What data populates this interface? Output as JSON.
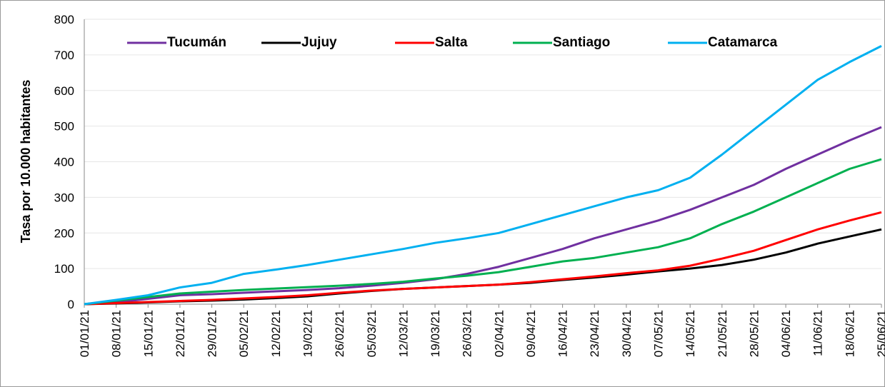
{
  "chart_data": {
    "type": "line",
    "y_label": "Tasa por 10.000 habitantes",
    "categories": [
      "01/01/21",
      "08/01/21",
      "15/01/21",
      "22/01/21",
      "29/01/21",
      "05/02/21",
      "12/02/21",
      "19/02/21",
      "26/02/21",
      "05/03/21",
      "12/03/21",
      "19/03/21",
      "26/03/21",
      "02/04/21",
      "09/04/21",
      "16/04/21",
      "23/04/21",
      "30/04/21",
      "07/05/21",
      "14/05/21",
      "21/05/21",
      "28/05/21",
      "04/06/21",
      "11/06/21",
      "18/06/21",
      "25/06/21"
    ],
    "series": [
      {
        "name": "Tucumán",
        "color": "#7030a0",
        "values": [
          0,
          5,
          15,
          25,
          28,
          32,
          36,
          40,
          45,
          52,
          60,
          70,
          85,
          105,
          130,
          155,
          185,
          210,
          235,
          265,
          300,
          335,
          380,
          420,
          460,
          497
        ]
      },
      {
        "name": "Jujuy",
        "color": "#000000",
        "values": [
          0,
          2,
          5,
          8,
          10,
          13,
          17,
          22,
          30,
          37,
          43,
          47,
          51,
          55,
          60,
          68,
          75,
          83,
          92,
          100,
          110,
          125,
          145,
          170,
          190,
          210
        ]
      },
      {
        "name": "Salta",
        "color": "#ff0000",
        "values": [
          0,
          3,
          6,
          9,
          12,
          16,
          20,
          25,
          32,
          38,
          43,
          47,
          51,
          55,
          62,
          70,
          78,
          87,
          95,
          108,
          128,
          150,
          180,
          210,
          235,
          258
        ]
      },
      {
        "name": "Santiago",
        "color": "#00b050",
        "values": [
          0,
          10,
          20,
          30,
          35,
          40,
          44,
          48,
          52,
          57,
          63,
          72,
          80,
          90,
          105,
          120,
          130,
          145,
          160,
          185,
          225,
          260,
          300,
          340,
          380,
          407
        ]
      },
      {
        "name": "Catamarca",
        "color": "#00b0f0",
        "values": [
          0,
          12,
          25,
          47,
          60,
          85,
          97,
          110,
          125,
          140,
          155,
          172,
          185,
          200,
          225,
          250,
          275,
          300,
          320,
          355,
          420,
          490,
          560,
          630,
          680,
          725
        ]
      }
    ],
    "ylim": [
      0,
      800
    ],
    "yticks": [
      0,
      100,
      200,
      300,
      400,
      500,
      600,
      700,
      800
    ],
    "grid": true
  }
}
